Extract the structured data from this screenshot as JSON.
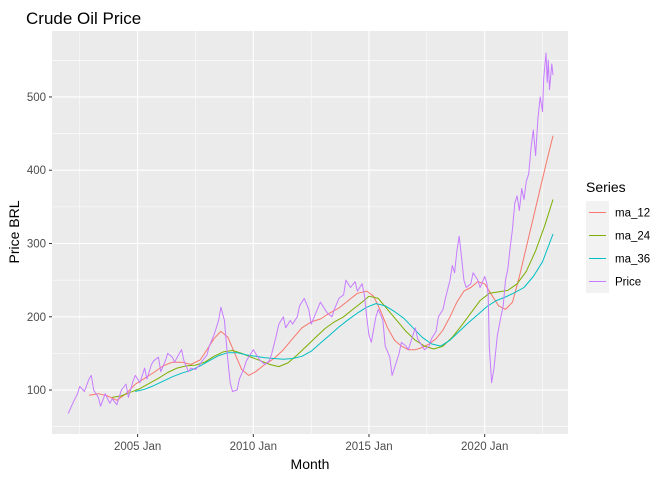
{
  "chart_data": {
    "type": "line",
    "title": "Crude Oil Price",
    "xlabel": "Month",
    "ylabel": "Price BRL",
    "x_ticks": [
      {
        "label": "2005 Jan",
        "x": 2005.0
      },
      {
        "label": "2010 Jan",
        "x": 2010.0
      },
      {
        "label": "2015 Jan",
        "x": 2015.0
      },
      {
        "label": "2020 Jan",
        "x": 2020.0
      }
    ],
    "y_ticks": [
      100,
      200,
      300,
      400,
      500
    ],
    "xlim": [
      2001.3,
      2023.6
    ],
    "ylim": [
      40,
      590
    ],
    "grid": true,
    "legend": {
      "title": "Series",
      "position": "right"
    },
    "series": [
      {
        "name": "ma_12",
        "color": "#F8766D",
        "points": [
          [
            2002.9,
            93
          ],
          [
            2003.3,
            95
          ],
          [
            2003.7,
            92
          ],
          [
            2004.1,
            86
          ],
          [
            2004.5,
            95
          ],
          [
            2004.9,
            108
          ],
          [
            2005.3,
            116
          ],
          [
            2005.7,
            124
          ],
          [
            2006.1,
            133
          ],
          [
            2006.5,
            138
          ],
          [
            2006.9,
            138
          ],
          [
            2007.3,
            135
          ],
          [
            2007.7,
            141
          ],
          [
            2008.0,
            155
          ],
          [
            2008.3,
            170
          ],
          [
            2008.6,
            180
          ],
          [
            2008.9,
            172
          ],
          [
            2009.2,
            150
          ],
          [
            2009.5,
            128
          ],
          [
            2009.8,
            120
          ],
          [
            2010.1,
            125
          ],
          [
            2010.5,
            135
          ],
          [
            2010.9,
            143
          ],
          [
            2011.3,
            155
          ],
          [
            2011.7,
            170
          ],
          [
            2012.1,
            185
          ],
          [
            2012.5,
            193
          ],
          [
            2012.9,
            197
          ],
          [
            2013.3,
            205
          ],
          [
            2013.7,
            212
          ],
          [
            2014.1,
            222
          ],
          [
            2014.5,
            232
          ],
          [
            2014.9,
            235
          ],
          [
            2015.2,
            228
          ],
          [
            2015.5,
            208
          ],
          [
            2015.8,
            185
          ],
          [
            2016.1,
            168
          ],
          [
            2016.4,
            160
          ],
          [
            2016.7,
            155
          ],
          [
            2017.0,
            155
          ],
          [
            2017.3,
            158
          ],
          [
            2017.6,
            163
          ],
          [
            2017.9,
            170
          ],
          [
            2018.2,
            182
          ],
          [
            2018.5,
            200
          ],
          [
            2018.8,
            220
          ],
          [
            2019.1,
            235
          ],
          [
            2019.4,
            240
          ],
          [
            2019.7,
            248
          ],
          [
            2020.0,
            245
          ],
          [
            2020.3,
            230
          ],
          [
            2020.6,
            215
          ],
          [
            2020.9,
            210
          ],
          [
            2021.2,
            220
          ],
          [
            2021.5,
            255
          ],
          [
            2021.8,
            295
          ],
          [
            2022.1,
            335
          ],
          [
            2022.4,
            375
          ],
          [
            2022.7,
            415
          ],
          [
            2022.95,
            447
          ]
        ]
      },
      {
        "name": "ma_24",
        "color": "#7CAE00",
        "points": [
          [
            2003.9,
            90
          ],
          [
            2004.3,
            92
          ],
          [
            2004.7,
            97
          ],
          [
            2005.1,
            102
          ],
          [
            2005.5,
            109
          ],
          [
            2005.9,
            116
          ],
          [
            2006.3,
            124
          ],
          [
            2006.7,
            130
          ],
          [
            2007.1,
            133
          ],
          [
            2007.5,
            134
          ],
          [
            2007.9,
            138
          ],
          [
            2008.3,
            146
          ],
          [
            2008.7,
            152
          ],
          [
            2009.1,
            154
          ],
          [
            2009.5,
            150
          ],
          [
            2009.9,
            145
          ],
          [
            2010.3,
            140
          ],
          [
            2010.7,
            135
          ],
          [
            2011.1,
            132
          ],
          [
            2011.5,
            137
          ],
          [
            2011.9,
            148
          ],
          [
            2012.3,
            160
          ],
          [
            2012.7,
            172
          ],
          [
            2013.1,
            184
          ],
          [
            2013.5,
            193
          ],
          [
            2013.9,
            200
          ],
          [
            2014.3,
            210
          ],
          [
            2014.7,
            220
          ],
          [
            2015.0,
            228
          ],
          [
            2015.4,
            225
          ],
          [
            2015.8,
            210
          ],
          [
            2016.2,
            195
          ],
          [
            2016.6,
            180
          ],
          [
            2017.0,
            168
          ],
          [
            2017.4,
            160
          ],
          [
            2017.8,
            156
          ],
          [
            2018.2,
            160
          ],
          [
            2018.6,
            172
          ],
          [
            2019.0,
            188
          ],
          [
            2019.4,
            205
          ],
          [
            2019.8,
            222
          ],
          [
            2020.2,
            232
          ],
          [
            2020.6,
            234
          ],
          [
            2021.0,
            236
          ],
          [
            2021.4,
            245
          ],
          [
            2021.8,
            262
          ],
          [
            2022.2,
            290
          ],
          [
            2022.6,
            325
          ],
          [
            2022.95,
            360
          ]
        ]
      },
      {
        "name": "ma_36",
        "color": "#00BFC4",
        "points": [
          [
            2004.9,
            98
          ],
          [
            2005.3,
            101
          ],
          [
            2005.7,
            106
          ],
          [
            2006.1,
            112
          ],
          [
            2006.5,
            118
          ],
          [
            2006.9,
            123
          ],
          [
            2007.3,
            127
          ],
          [
            2007.7,
            133
          ],
          [
            2008.1,
            140
          ],
          [
            2008.5,
            147
          ],
          [
            2008.9,
            151
          ],
          [
            2009.3,
            151
          ],
          [
            2009.7,
            148
          ],
          [
            2010.1,
            146
          ],
          [
            2010.5,
            144
          ],
          [
            2010.9,
            143
          ],
          [
            2011.3,
            142
          ],
          [
            2011.7,
            143
          ],
          [
            2012.1,
            146
          ],
          [
            2012.5,
            153
          ],
          [
            2012.9,
            164
          ],
          [
            2013.3,
            175
          ],
          [
            2013.7,
            186
          ],
          [
            2014.1,
            196
          ],
          [
            2014.5,
            205
          ],
          [
            2014.9,
            213
          ],
          [
            2015.3,
            218
          ],
          [
            2015.7,
            215
          ],
          [
            2016.1,
            207
          ],
          [
            2016.5,
            198
          ],
          [
            2016.9,
            185
          ],
          [
            2017.3,
            172
          ],
          [
            2017.7,
            163
          ],
          [
            2018.1,
            160
          ],
          [
            2018.5,
            168
          ],
          [
            2018.9,
            180
          ],
          [
            2019.3,
            192
          ],
          [
            2019.7,
            203
          ],
          [
            2020.1,
            214
          ],
          [
            2020.5,
            222
          ],
          [
            2020.9,
            227
          ],
          [
            2021.3,
            233
          ],
          [
            2021.7,
            240
          ],
          [
            2022.1,
            255
          ],
          [
            2022.5,
            275
          ],
          [
            2022.95,
            313
          ]
        ]
      },
      {
        "name": "Price",
        "color": "#C77CFF",
        "points": [
          [
            2002.0,
            68
          ],
          [
            2002.2,
            82
          ],
          [
            2002.4,
            95
          ],
          [
            2002.5,
            105
          ],
          [
            2002.7,
            98
          ],
          [
            2002.9,
            115
          ],
          [
            2003.0,
            120
          ],
          [
            2003.1,
            100
          ],
          [
            2003.3,
            90
          ],
          [
            2003.4,
            78
          ],
          [
            2003.6,
            95
          ],
          [
            2003.8,
            82
          ],
          [
            2003.9,
            88
          ],
          [
            2004.1,
            80
          ],
          [
            2004.3,
            100
          ],
          [
            2004.5,
            108
          ],
          [
            2004.6,
            90
          ],
          [
            2004.8,
            112
          ],
          [
            2004.9,
            120
          ],
          [
            2005.1,
            110
          ],
          [
            2005.3,
            130
          ],
          [
            2005.4,
            115
          ],
          [
            2005.6,
            135
          ],
          [
            2005.7,
            140
          ],
          [
            2005.9,
            145
          ],
          [
            2006.0,
            125
          ],
          [
            2006.2,
            140
          ],
          [
            2006.3,
            150
          ],
          [
            2006.5,
            145
          ],
          [
            2006.6,
            138
          ],
          [
            2006.8,
            150
          ],
          [
            2006.9,
            155
          ],
          [
            2007.0,
            140
          ],
          [
            2007.2,
            125
          ],
          [
            2007.3,
            130
          ],
          [
            2007.5,
            128
          ],
          [
            2007.7,
            135
          ],
          [
            2007.8,
            140
          ],
          [
            2008.0,
            148
          ],
          [
            2008.1,
            160
          ],
          [
            2008.3,
            175
          ],
          [
            2008.5,
            195
          ],
          [
            2008.6,
            213
          ],
          [
            2008.75,
            195
          ],
          [
            2008.9,
            140
          ],
          [
            2009.0,
            110
          ],
          [
            2009.1,
            98
          ],
          [
            2009.3,
            100
          ],
          [
            2009.4,
            115
          ],
          [
            2009.6,
            130
          ],
          [
            2009.7,
            140
          ],
          [
            2009.9,
            150
          ],
          [
            2010.0,
            155
          ],
          [
            2010.2,
            145
          ],
          [
            2010.3,
            140
          ],
          [
            2010.5,
            135
          ],
          [
            2010.7,
            140
          ],
          [
            2010.8,
            150
          ],
          [
            2011.0,
            175
          ],
          [
            2011.1,
            190
          ],
          [
            2011.3,
            200
          ],
          [
            2011.4,
            185
          ],
          [
            2011.6,
            195
          ],
          [
            2011.7,
            190
          ],
          [
            2011.9,
            200
          ],
          [
            2012.0,
            215
          ],
          [
            2012.2,
            225
          ],
          [
            2012.4,
            210
          ],
          [
            2012.5,
            190
          ],
          [
            2012.7,
            205
          ],
          [
            2012.9,
            220
          ],
          [
            2013.0,
            215
          ],
          [
            2013.2,
            205
          ],
          [
            2013.4,
            200
          ],
          [
            2013.5,
            210
          ],
          [
            2013.7,
            225
          ],
          [
            2013.9,
            230
          ],
          [
            2014.0,
            250
          ],
          [
            2014.2,
            240
          ],
          [
            2014.4,
            248
          ],
          [
            2014.5,
            235
          ],
          [
            2014.7,
            245
          ],
          [
            2014.8,
            230
          ],
          [
            2014.9,
            200
          ],
          [
            2015.0,
            175
          ],
          [
            2015.1,
            165
          ],
          [
            2015.3,
            200
          ],
          [
            2015.4,
            210
          ],
          [
            2015.6,
            195
          ],
          [
            2015.7,
            160
          ],
          [
            2015.9,
            145
          ],
          [
            2016.0,
            120
          ],
          [
            2016.1,
            130
          ],
          [
            2016.3,
            150
          ],
          [
            2016.4,
            165
          ],
          [
            2016.6,
            160
          ],
          [
            2016.7,
            155
          ],
          [
            2016.9,
            175
          ],
          [
            2017.0,
            185
          ],
          [
            2017.1,
            170
          ],
          [
            2017.3,
            160
          ],
          [
            2017.4,
            155
          ],
          [
            2017.6,
            160
          ],
          [
            2017.7,
            170
          ],
          [
            2017.9,
            180
          ],
          [
            2018.0,
            200
          ],
          [
            2018.2,
            210
          ],
          [
            2018.3,
            225
          ],
          [
            2018.5,
            250
          ],
          [
            2018.6,
            270
          ],
          [
            2018.7,
            260
          ],
          [
            2018.8,
            290
          ],
          [
            2018.9,
            310
          ],
          [
            2019.0,
            280
          ],
          [
            2019.1,
            250
          ],
          [
            2019.2,
            240
          ],
          [
            2019.4,
            245
          ],
          [
            2019.5,
            260
          ],
          [
            2019.7,
            250
          ],
          [
            2019.8,
            240
          ],
          [
            2020.0,
            255
          ],
          [
            2020.1,
            245
          ],
          [
            2020.15,
            230
          ],
          [
            2020.2,
            160
          ],
          [
            2020.3,
            110
          ],
          [
            2020.4,
            130
          ],
          [
            2020.55,
            175
          ],
          [
            2020.7,
            200
          ],
          [
            2020.8,
            215
          ],
          [
            2020.9,
            250
          ],
          [
            2021.0,
            265
          ],
          [
            2021.1,
            295
          ],
          [
            2021.2,
            320
          ],
          [
            2021.3,
            355
          ],
          [
            2021.4,
            365
          ],
          [
            2021.5,
            345
          ],
          [
            2021.6,
            375
          ],
          [
            2021.7,
            360
          ],
          [
            2021.8,
            385
          ],
          [
            2021.9,
            395
          ],
          [
            2022.0,
            430
          ],
          [
            2022.1,
            455
          ],
          [
            2022.2,
            420
          ],
          [
            2022.3,
            470
          ],
          [
            2022.4,
            500
          ],
          [
            2022.5,
            480
          ],
          [
            2022.55,
            525
          ],
          [
            2022.65,
            560
          ],
          [
            2022.7,
            520
          ],
          [
            2022.75,
            550
          ],
          [
            2022.8,
            510
          ],
          [
            2022.9,
            545
          ],
          [
            2022.95,
            530
          ]
        ]
      }
    ]
  }
}
